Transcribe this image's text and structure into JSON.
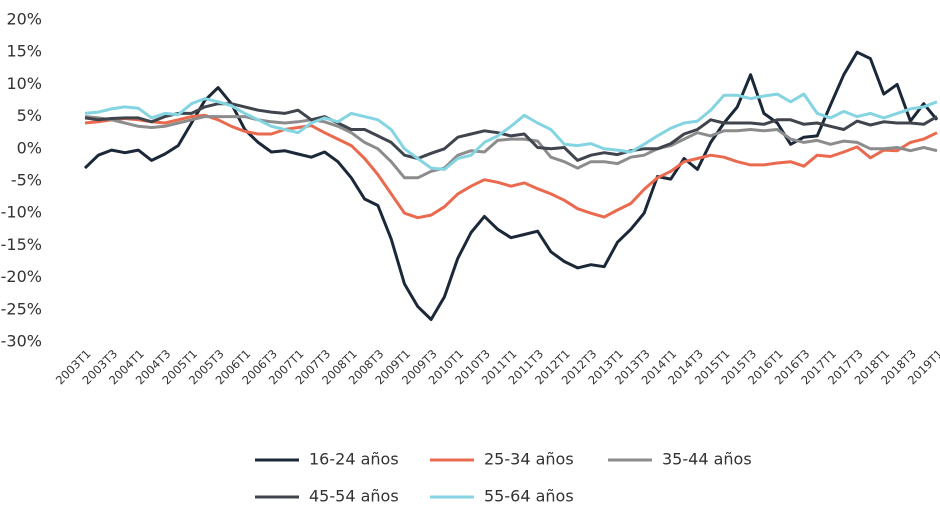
{
  "chart_data": {
    "type": "line",
    "categories": [
      "2003T1",
      null,
      "2003T3",
      null,
      "2004T1",
      null,
      "2004T3",
      null,
      "2005T1",
      null,
      "2005T3",
      null,
      "2006T1",
      null,
      "2006T3",
      null,
      "2007T1",
      null,
      "2007T3",
      null,
      "2008T1",
      null,
      "2008T3",
      null,
      "2009T1",
      null,
      "2009T3",
      null,
      "2010T1",
      null,
      "2010T3",
      null,
      "2011T1",
      null,
      "2011T3",
      null,
      "2012T1",
      null,
      "2012T3",
      null,
      "2013T1",
      null,
      "2013T3",
      null,
      "2014T1",
      null,
      "2014T3",
      null,
      "2015T1",
      null,
      "2015T3",
      null,
      "2016T1",
      null,
      "2016T3",
      null,
      "2017T1",
      null,
      "2017T3",
      null,
      "2018T1",
      null,
      "2018T3",
      null,
      "2019T1"
    ],
    "series": [
      {
        "name": "16-24 años",
        "color": "#1b2838",
        "values": [
          -3,
          -1,
          -0.2,
          -0.6,
          -0.2,
          -1.8,
          -0.8,
          0.5,
          4,
          7.5,
          9.5,
          7,
          3,
          1,
          -0.5,
          -0.3,
          -0.8,
          -1.3,
          -0.5,
          -2,
          -4.5,
          -7.8,
          -8.8,
          -14,
          -21,
          -24.5,
          -26.5,
          -23,
          -17,
          -13,
          -10.5,
          -12.5,
          -13.8,
          -13.3,
          -12.8,
          -16,
          -17.5,
          -18.5,
          -18,
          -18.3,
          -14.5,
          -12.5,
          -10,
          -4.3,
          -4.7,
          -1.5,
          -3.2,
          1,
          4,
          6.5,
          11.5,
          5.5,
          4,
          0.7,
          1.8,
          2,
          6.8,
          11.5,
          15,
          14,
          8.5,
          10,
          4.3,
          7,
          4.5
        ]
      },
      {
        "name": "25-34 años",
        "color": "#ea6a4f",
        "values": [
          4,
          4.2,
          4.5,
          4.7,
          4.5,
          4.2,
          4,
          4.5,
          5,
          5.2,
          4.5,
          3.5,
          2.7,
          2.3,
          2.3,
          3,
          3.3,
          3.6,
          2.5,
          1.5,
          0.5,
          -1.5,
          -4,
          -7,
          -10,
          -10.7,
          -10.3,
          -9,
          -7,
          -5.8,
          -4.8,
          -5.2,
          -5.8,
          -5.3,
          -6.2,
          -7,
          -8,
          -9.3,
          -10,
          -10.6,
          -9.5,
          -8.5,
          -6.3,
          -4.5,
          -3.5,
          -2,
          -1.5,
          -1,
          -1.3,
          -2,
          -2.5,
          -2.5,
          -2.2,
          -2,
          -2.7,
          -1,
          -1.2,
          -0.5,
          0.3,
          -1.4,
          -0.2,
          -0.3,
          1,
          1.5,
          2.5
        ]
      },
      {
        "name": "35-44 años",
        "color": "#8c8c8c",
        "values": [
          5,
          4.8,
          4.5,
          4,
          3.5,
          3.3,
          3.5,
          4,
          4.5,
          5,
          5,
          5,
          5,
          4.5,
          4.2,
          4,
          4.2,
          4.5,
          4.2,
          3.5,
          2.5,
          1,
          0,
          -2,
          -4.5,
          -4.5,
          -3.5,
          -3,
          -1,
          -0.3,
          -0.5,
          1.3,
          1.5,
          1.5,
          1.2,
          -1.3,
          -2,
          -3,
          -2,
          -2,
          -2.3,
          -1.3,
          -1,
          0,
          0.5,
          1.5,
          2.5,
          2,
          2.8,
          2.8,
          3,
          2.8,
          3,
          1.5,
          1,
          1.3,
          0.7,
          1.2,
          1,
          0,
          0,
          0.2,
          -0.3,
          0.2,
          -0.3
        ]
      },
      {
        "name": "45-54 años",
        "color": "#40454d",
        "values": [
          4.8,
          4.5,
          4.7,
          4.8,
          4.8,
          4.2,
          5,
          5.5,
          5.5,
          6.5,
          7,
          7,
          6.5,
          6,
          5.7,
          5.5,
          6,
          4.5,
          5,
          4,
          3,
          3,
          2,
          1,
          -1,
          -1.5,
          -0.7,
          0,
          1.8,
          2.3,
          2.8,
          2.5,
          2,
          2.3,
          0.2,
          0,
          0.2,
          -1.8,
          -1,
          -0.6,
          -0.9,
          -0.3,
          0,
          0,
          0.8,
          2.3,
          3,
          4.5,
          4,
          4,
          4,
          3.8,
          4.5,
          4.5,
          3.8,
          4,
          3.5,
          3,
          4.3,
          3.7,
          4.2,
          4,
          4,
          3.8,
          5
        ]
      },
      {
        "name": "55-64 años",
        "color": "#84d4e2",
        "values": [
          5.5,
          5.7,
          6.2,
          6.5,
          6.3,
          4.8,
          5.5,
          5.3,
          7,
          7.8,
          7.3,
          6.7,
          5.5,
          4.5,
          3.5,
          3,
          2.5,
          4,
          4.8,
          4.2,
          5.5,
          5,
          4.5,
          3,
          0,
          -1.5,
          -3,
          -3.2,
          -1.5,
          -1,
          1,
          2,
          3.5,
          5.2,
          4,
          3,
          0.7,
          0.5,
          0.8,
          0,
          -0.2,
          -0.5,
          0.7,
          2,
          3.2,
          4,
          4.3,
          6,
          8.3,
          8.3,
          7.8,
          8.2,
          8.5,
          7.3,
          8.5,
          5.5,
          4.8,
          5.8,
          5,
          5.5,
          4.8,
          5.5,
          6.2,
          6.5,
          7.3
        ]
      }
    ],
    "ylim": [
      -30,
      20
    ],
    "yticks": [
      {
        "value": -30,
        "label": "-30%"
      },
      {
        "value": -25,
        "label": "-25%"
      },
      {
        "value": -20,
        "label": "-20%"
      },
      {
        "value": -15,
        "label": "-15%"
      },
      {
        "value": -10,
        "label": "-10%"
      },
      {
        "value": -5,
        "label": "-5%"
      },
      {
        "value": 0,
        "label": "0%"
      },
      {
        "value": 5,
        "label": "5%"
      },
      {
        "value": 10,
        "label": "10%"
      },
      {
        "value": 15,
        "label": "15%"
      },
      {
        "value": 20,
        "label": "20%"
      }
    ]
  }
}
